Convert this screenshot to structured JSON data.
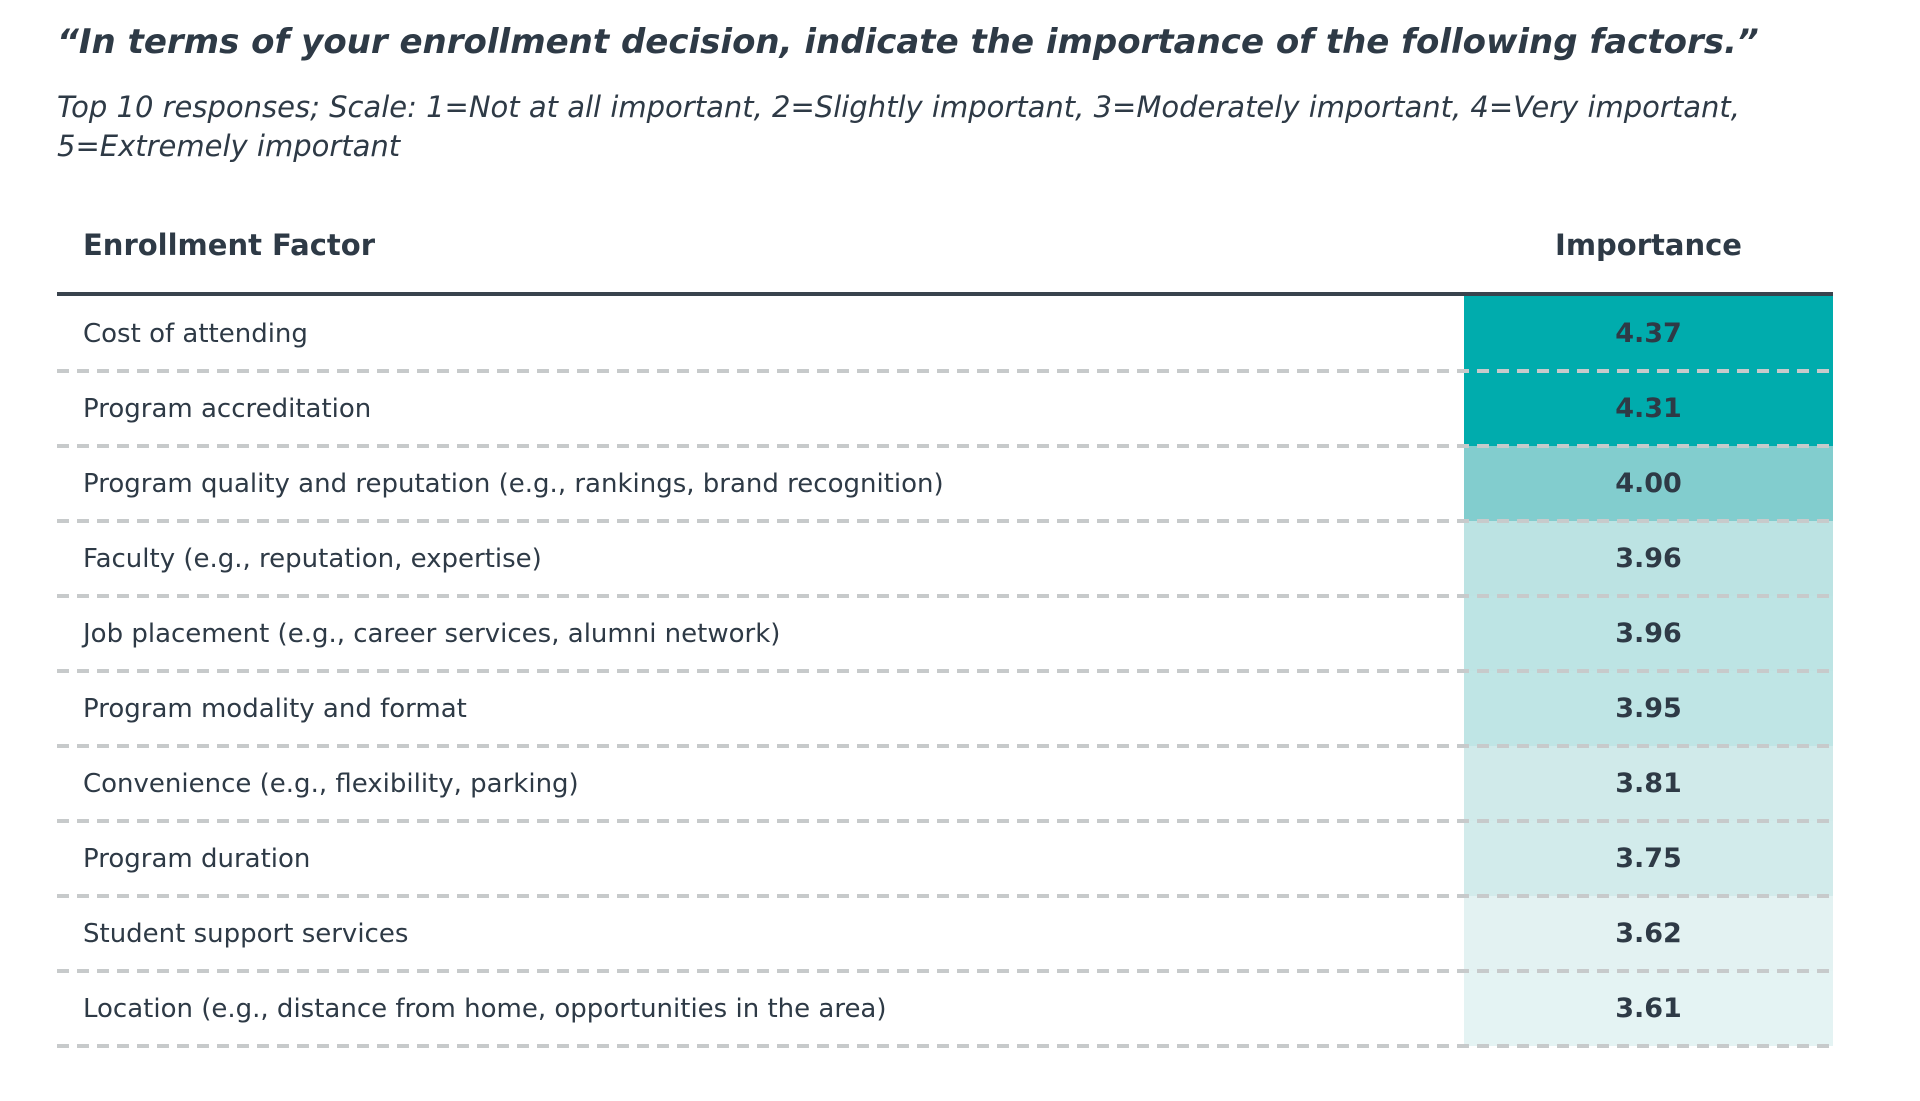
{
  "header": {
    "title": "“In terms of your enrollment decision, indicate the importance of the following factors.”",
    "subtitle": "Top 10 responses; Scale: 1=Not at all important, 2=Slightly important, 3=Moderately important, 4=Very important, 5=Extremely important"
  },
  "colors": {
    "text": "#2e3a46",
    "rule": "#39434d",
    "divider": "#c7cacb",
    "teal_max": "#00acad",
    "teal_min": "#e4f3f3"
  },
  "table": {
    "columns": {
      "factor": "Enrollment Factor",
      "importance": "Importance"
    },
    "rows": [
      {
        "factor": "Cost of attending",
        "importance": "4.37",
        "cell_color": "#00acad"
      },
      {
        "factor": "Program accreditation",
        "importance": "4.31",
        "cell_color": "#00acad"
      },
      {
        "factor": "Program quality and reputation (e.g., rankings, brand recognition)",
        "importance": "4.00",
        "cell_color": "#82cdce"
      },
      {
        "factor": "Faculty (e.g., reputation, expertise)",
        "importance": "3.96",
        "cell_color": "#bce3e3"
      },
      {
        "factor": "Job placement (e.g., career services, alumni network)",
        "importance": "3.96",
        "cell_color": "#bde4e4"
      },
      {
        "factor": "Program modality and format",
        "importance": "3.95",
        "cell_color": "#bfe5e5"
      },
      {
        "factor": "Convenience (e.g., flexibility, parking)",
        "importance": "3.81",
        "cell_color": "#d0eaea"
      },
      {
        "factor": "Program duration",
        "importance": "3.75",
        "cell_color": "#d2ebeb"
      },
      {
        "factor": "Student support services",
        "importance": "3.62",
        "cell_color": "#e3f2f2"
      },
      {
        "factor": "Location (e.g., distance from home, opportunities in the area)",
        "importance": "3.61",
        "cell_color": "#e4f3f3"
      }
    ]
  },
  "chart_data": {
    "type": "table",
    "title": "“In terms of your enrollment decision, indicate the importance of the following factors.”",
    "subtitle": "Top 10 responses; Scale: 1=Not at all important, 2=Slightly important, 3=Moderately important, 4=Very important, 5=Extremely important",
    "columns": [
      "Enrollment Factor",
      "Importance"
    ],
    "categories": [
      "Cost of attending",
      "Program accreditation",
      "Program quality and reputation (e.g., rankings, brand recognition)",
      "Faculty (e.g., reputation, expertise)",
      "Job placement (e.g., career services, alumni network)",
      "Program modality and format",
      "Convenience (e.g., flexibility, parking)",
      "Program duration",
      "Student support services",
      "Location (e.g., distance from home, opportunities in the area)"
    ],
    "values": [
      4.37,
      4.31,
      4.0,
      3.96,
      3.96,
      3.95,
      3.81,
      3.75,
      3.62,
      3.61
    ],
    "scale_range": [
      1,
      5
    ],
    "color_encoding": "higher importance = more saturated teal fill in Importance column",
    "legend_position": "none",
    "grid": "dashed horizontal row separators"
  }
}
